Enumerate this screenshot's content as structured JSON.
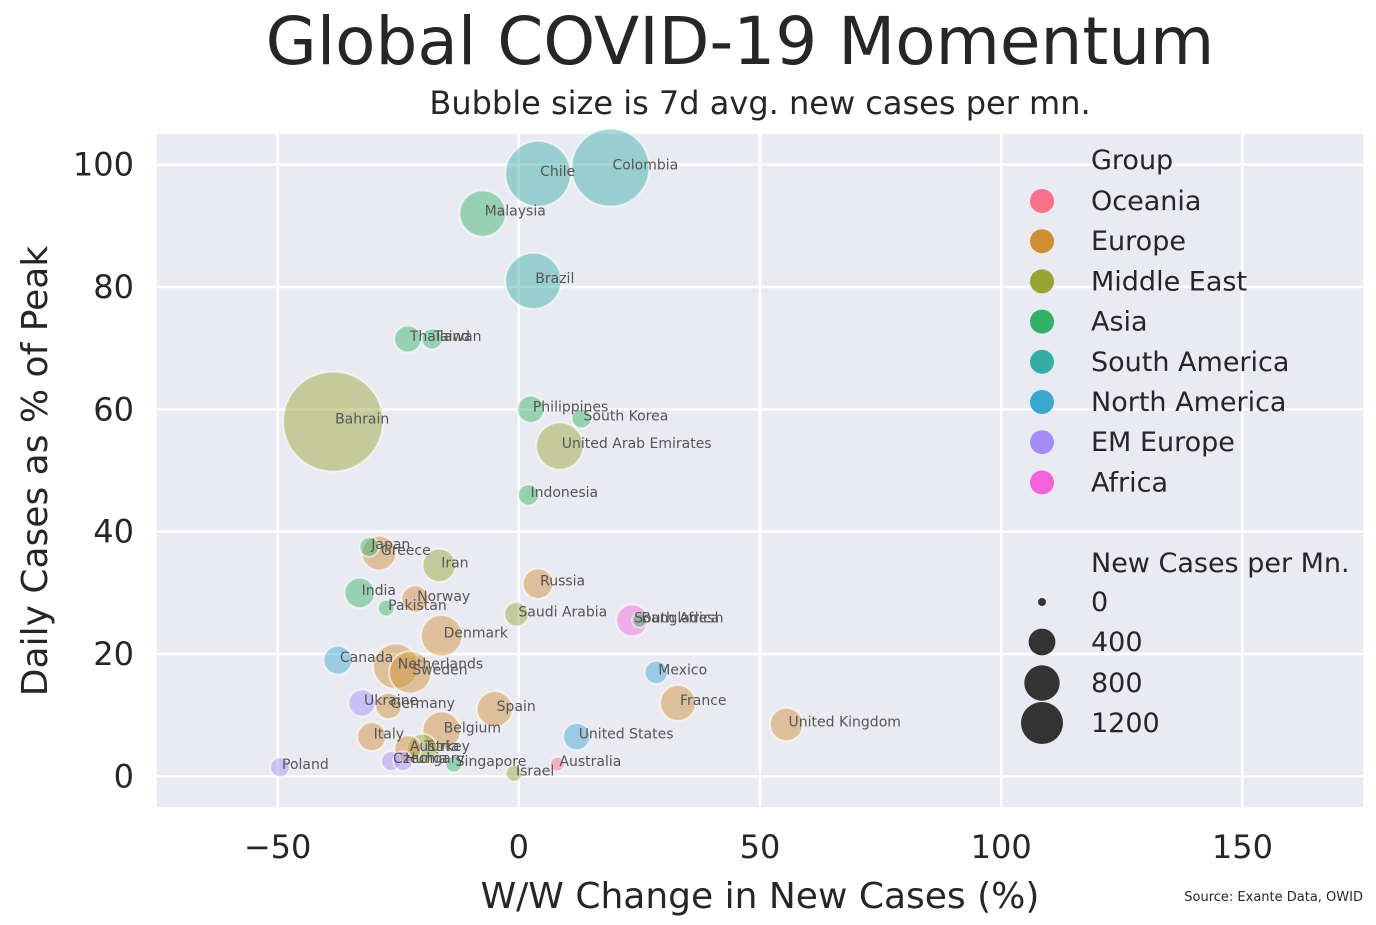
{
  "chart_data": {
    "type": "scatter",
    "title": "Global COVID-19 Momentum",
    "subtitle": "Bubble size is 7d avg. new cases per mn.",
    "xlabel": "W/W Change in New Cases (%)",
    "ylabel": "Daily Cases as % of Peak",
    "xlim": [
      -75,
      175
    ],
    "ylim": [
      -5,
      105
    ],
    "xticks": [
      -50,
      0,
      50,
      100,
      150
    ],
    "xtick_labels": [
      "−50",
      "0",
      "50",
      "100",
      "150"
    ],
    "yticks": [
      0,
      20,
      40,
      60,
      80,
      100
    ],
    "ytick_labels": [
      "0",
      "20",
      "40",
      "60",
      "80",
      "100"
    ],
    "grid": true,
    "source": "Source: Exante Data, OWID",
    "legend": {
      "placement": "upper-right",
      "group_title": "Group",
      "groups": [
        {
          "name": "Oceania",
          "color": "#f77189"
        },
        {
          "name": "Europe",
          "color": "#ce8f31"
        },
        {
          "name": "Middle East",
          "color": "#96a331"
        },
        {
          "name": "Asia",
          "color": "#32b166"
        },
        {
          "name": "South America",
          "color": "#36ada4"
        },
        {
          "name": "North America",
          "color": "#39a7d0"
        },
        {
          "name": "EM Europe",
          "color": "#a48cf4"
        },
        {
          "name": "Africa",
          "color": "#f461dd"
        }
      ],
      "size_title": "New Cases per Mn.",
      "sizes": [
        {
          "label": "0",
          "value": 0
        },
        {
          "label": "400",
          "value": 400
        },
        {
          "label": "800",
          "value": 800
        },
        {
          "label": "1200",
          "value": 1200
        }
      ]
    },
    "points": [
      {
        "country": "Colombia",
        "group": "South America",
        "x": 19,
        "y": 99.5,
        "cases": 700
      },
      {
        "country": "Chile",
        "group": "South America",
        "x": 4,
        "y": 98.5,
        "cases": 480
      },
      {
        "country": "Malaysia",
        "group": "Asia",
        "x": -7.5,
        "y": 92,
        "cases": 220
      },
      {
        "country": "Brazil",
        "group": "South America",
        "x": 3,
        "y": 81,
        "cases": 340
      },
      {
        "country": "Thailand",
        "group": "Asia",
        "x": -23,
        "y": 71.5,
        "cases": 60
      },
      {
        "country": "Taiwan",
        "group": "Asia",
        "x": -18,
        "y": 71.5,
        "cases": 30
      },
      {
        "country": "Philippines",
        "group": "Asia",
        "x": 2.5,
        "y": 60,
        "cases": 60
      },
      {
        "country": "South Korea",
        "group": "Asia",
        "x": 13,
        "y": 58.5,
        "cases": 25
      },
      {
        "country": "Bahrain",
        "group": "Middle East",
        "x": -38.5,
        "y": 58,
        "cases": 1200
      },
      {
        "country": "United Arab Emirates",
        "group": "Middle East",
        "x": 8.5,
        "y": 54,
        "cases": 230
      },
      {
        "country": "Indonesia",
        "group": "Asia",
        "x": 2,
        "y": 46,
        "cases": 30
      },
      {
        "country": "Japan",
        "group": "Asia",
        "x": -31,
        "y": 37.5,
        "cases": 25
      },
      {
        "country": "Greece",
        "group": "Europe",
        "x": -29,
        "y": 36.5,
        "cases": 110
      },
      {
        "country": "Iran",
        "group": "Middle East",
        "x": -16.5,
        "y": 34.5,
        "cases": 100
      },
      {
        "country": "Russia",
        "group": "Europe",
        "x": 4,
        "y": 31.5,
        "cases": 80
      },
      {
        "country": "India",
        "group": "Asia",
        "x": -33,
        "y": 30,
        "cases": 80
      },
      {
        "country": "Norway",
        "group": "Europe",
        "x": -21.5,
        "y": 29,
        "cases": 60
      },
      {
        "country": "Pakistan",
        "group": "Asia",
        "x": -27.5,
        "y": 27.5,
        "cases": 15
      },
      {
        "country": "Saudi Arabia",
        "group": "Middle East",
        "x": -0.5,
        "y": 26.5,
        "cases": 45
      },
      {
        "country": "South Africa",
        "group": "Africa",
        "x": 23.5,
        "y": 25.5,
        "cases": 90
      },
      {
        "country": "Bangladesh",
        "group": "Asia",
        "x": 25,
        "y": 25.5,
        "cases": 10
      },
      {
        "country": "Denmark",
        "group": "Europe",
        "x": -16,
        "y": 23,
        "cases": 170
      },
      {
        "country": "Canada",
        "group": "North America",
        "x": -37.5,
        "y": 19,
        "cases": 70
      },
      {
        "country": "Netherlands",
        "group": "Europe",
        "x": -25.5,
        "y": 18,
        "cases": 210
      },
      {
        "country": "Sweden",
        "group": "Europe",
        "x": -22.5,
        "y": 17,
        "cases": 180
      },
      {
        "country": "Mexico",
        "group": "North America",
        "x": 28.5,
        "y": 17,
        "cases": 40
      },
      {
        "country": "Ukraine",
        "group": "EM Europe",
        "x": -32.5,
        "y": 12,
        "cases": 60
      },
      {
        "country": "Germany",
        "group": "Europe",
        "x": -27,
        "y": 11.5,
        "cases": 55
      },
      {
        "country": "Spain",
        "group": "Europe",
        "x": -5,
        "y": 11,
        "cases": 120
      },
      {
        "country": "France",
        "group": "Europe",
        "x": 33,
        "y": 12,
        "cases": 120
      },
      {
        "country": "United Kingdom",
        "group": "Europe",
        "x": 55.5,
        "y": 8.5,
        "cases": 100
      },
      {
        "country": "Belgium",
        "group": "Europe",
        "x": -16,
        "y": 7.5,
        "cases": 140
      },
      {
        "country": "Italy",
        "group": "Europe",
        "x": -30.5,
        "y": 6.5,
        "cases": 70
      },
      {
        "country": "United States",
        "group": "North America",
        "x": 12,
        "y": 6.5,
        "cases": 60
      },
      {
        "country": "Austria",
        "group": "Europe",
        "x": -23,
        "y": 4.5,
        "cases": 60
      },
      {
        "country": "Turkey",
        "group": "Middle East",
        "x": -20,
        "y": 4.5,
        "cases": 80
      },
      {
        "country": "Czechia",
        "group": "EM Europe",
        "x": -26.5,
        "y": 2.5,
        "cases": 25
      },
      {
        "country": "Hungary",
        "group": "EM Europe",
        "x": -24,
        "y": 2.5,
        "cases": 25
      },
      {
        "country": "Singapore",
        "group": "Asia",
        "x": -13.5,
        "y": 2,
        "cases": 15
      },
      {
        "country": "Australia",
        "group": "Oceania",
        "x": 8,
        "y": 2,
        "cases": 10
      },
      {
        "country": "Israel",
        "group": "Middle East",
        "x": -1,
        "y": 0.5,
        "cases": 15
      },
      {
        "country": "Poland",
        "group": "EM Europe",
        "x": -49.5,
        "y": 1.5,
        "cases": 25
      }
    ]
  }
}
